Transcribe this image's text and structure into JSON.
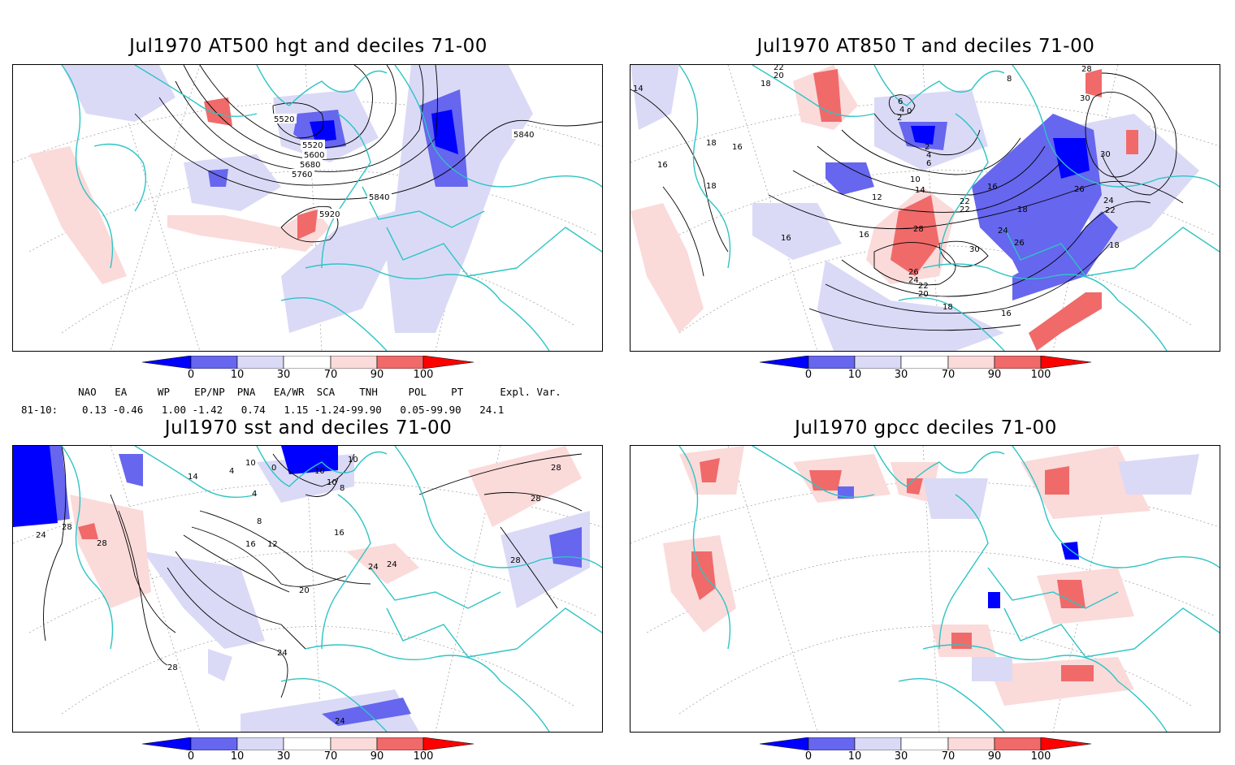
{
  "colors": {
    "d0_10_dark": "#0000ff",
    "d10_30": "#6666ee",
    "d30_light": "#dadaf7",
    "d70_light": "#fbdada",
    "d90": "#f06a6a",
    "d100_dark": "#ff0000",
    "coastline": "#2ec4c4",
    "contour": "#000000"
  },
  "colorbar": {
    "labels": [
      "0",
      "10",
      "30",
      "70",
      "90",
      "100"
    ]
  },
  "indices": {
    "header": "    NAO   EA     WP    EP/NP  PNA   EA/WR  SCA    TNH     POL    PT      Expl. Var.",
    "period": "81-10:",
    "values": "  0.13 -0.46   1.00 -1.42   0.74   1.15 -1.24-99.90   0.05-99.90   24.1",
    "names": [
      "NAO",
      "EA",
      "WP",
      "EP/NP",
      "PNA",
      "EA/WR",
      "SCA",
      "TNH",
      "POL",
      "PT",
      "Expl. Var."
    ],
    "nums": [
      "0.13",
      "-0.46",
      "1.00",
      "-1.42",
      "0.74",
      "1.15",
      "-1.24",
      "-99.90",
      "0.05",
      "-99.90",
      "24.1"
    ]
  },
  "chart_data": [
    {
      "type": "heatmap",
      "title": "Jul1970 AT500 hgt and deciles 71-00",
      "variable": "500 hPa geopotential height",
      "contour_labels": [
        "5520",
        "5520",
        "5600",
        "5680",
        "5760",
        "5840",
        "5840",
        "5920"
      ],
      "contour_values": [
        5520,
        5600,
        5680,
        5760,
        5840,
        5920
      ],
      "color_scale": {
        "type": "decile",
        "bins": [
          0,
          10,
          30,
          70,
          90,
          100
        ]
      },
      "map": "North Atlantic / Europe polar stereographic"
    },
    {
      "type": "heatmap",
      "title": "Jul1970 AT850 T and deciles 71-00",
      "variable": "850 hPa temperature",
      "contour_labels": [
        "14",
        "22",
        "20",
        "18",
        "8",
        "6",
        "4",
        "2",
        "0",
        "28",
        "30",
        "16",
        "18",
        "16",
        "18",
        "2",
        "4",
        "6",
        "10",
        "14",
        "16",
        "12",
        "22",
        "22",
        "18",
        "26",
        "24",
        "22",
        "28",
        "30",
        "24",
        "26",
        "16",
        "26",
        "24",
        "22",
        "20",
        "18",
        "16",
        "16",
        "30",
        "18"
      ],
      "contour_values": [
        0,
        2,
        4,
        6,
        8,
        10,
        12,
        14,
        16,
        18,
        20,
        22,
        24,
        26,
        28,
        30
      ],
      "color_scale": {
        "type": "decile",
        "bins": [
          0,
          10,
          30,
          70,
          90,
          100
        ]
      },
      "map": "North Atlantic / Europe polar stereographic"
    },
    {
      "type": "heatmap",
      "title": "Jul1970 sst and deciles 71-00",
      "variable": "sea surface temperature",
      "contour_labels": [
        "4",
        "10",
        "0",
        "10",
        "4",
        "10",
        "10",
        "14",
        "8",
        "28",
        "28",
        "28",
        "24",
        "28",
        "16",
        "8",
        "12",
        "16",
        "24",
        "24",
        "28",
        "20",
        "24",
        "28",
        "24"
      ],
      "contour_values": [
        0,
        4,
        8,
        10,
        12,
        14,
        16,
        20,
        24,
        28
      ],
      "color_scale": {
        "type": "decile",
        "bins": [
          0,
          10,
          30,
          70,
          90,
          100
        ]
      },
      "map": "North Atlantic / Europe polar stereographic"
    },
    {
      "type": "heatmap",
      "title": "Jul1970 gpcc deciles 71-00",
      "variable": "GPCC precipitation",
      "color_scale": {
        "type": "decile",
        "bins": [
          0,
          10,
          30,
          70,
          90,
          100
        ]
      },
      "map": "North Atlantic / Europe polar stereographic"
    }
  ]
}
